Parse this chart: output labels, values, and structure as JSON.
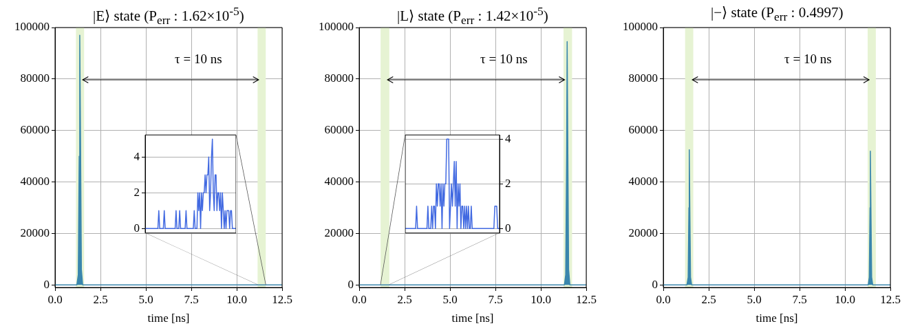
{
  "chart_data": [
    {
      "type": "area",
      "title": "|E⟩ state (P$_{err}$ : 1.62×10$^{-5}$)",
      "xlabel": "time [ns]",
      "color": "#3a86ad",
      "x": [
        0,
        1.2,
        1.28,
        1.33,
        1.36,
        1.4,
        1.45,
        1.52,
        12.5
      ],
      "values": [
        0,
        0,
        4000,
        50000,
        97000,
        60000,
        6000,
        0,
        0
      ],
      "xlim": [
        0,
        12.5
      ],
      "ylim": [
        -1000,
        100000
      ],
      "xticks": [
        {
          "value": 0,
          "label": "0.0"
        },
        {
          "value": 2.5,
          "label": "2.5"
        },
        {
          "value": 5,
          "label": "5.0"
        },
        {
          "value": 7.5,
          "label": "7.5"
        },
        {
          "value": 10,
          "label": "10.0"
        },
        {
          "value": 12.5,
          "label": "12.5"
        }
      ],
      "yticks": [
        0,
        20000,
        40000,
        60000,
        80000,
        100000
      ],
      "grid": true,
      "bands": [
        {
          "axis": "x",
          "from": 1.15,
          "to": 1.6,
          "color": "#e6f3d3"
        },
        {
          "axis": "x",
          "from": 11.15,
          "to": 11.6,
          "color": "#e6f3d3"
        }
      ],
      "annotations": [
        "τ = 10 ns"
      ]
    },
    {
      "type": "line",
      "color": "#4169e1",
      "tick_labels": "y",
      "grid": "y",
      "ylim": [
        -0.25,
        5.23
      ],
      "yticks": [
        0,
        2,
        4
      ],
      "categories": [
        null,
        null,
        null,
        null,
        null,
        null,
        null,
        null,
        null,
        null,
        null,
        null,
        null,
        null,
        null,
        null,
        null,
        null,
        null,
        null,
        null,
        null,
        null,
        null,
        null,
        null,
        null,
        null,
        null,
        null,
        null,
        null,
        null,
        null,
        null,
        null,
        null,
        null,
        null,
        null,
        null,
        null,
        null,
        null,
        null,
        null,
        null,
        null,
        null,
        null,
        null,
        null,
        null,
        null,
        null,
        null,
        null,
        null,
        null,
        null,
        null,
        null,
        null,
        null,
        null,
        null,
        null,
        null,
        null,
        null,
        null,
        null,
        null,
        null,
        null,
        null,
        null,
        null,
        null,
        null,
        null,
        null,
        null,
        null,
        null,
        null,
        null,
        null,
        null,
        null,
        null,
        null,
        null,
        null,
        null,
        null,
        null,
        null,
        null,
        null,
        null
      ],
      "values": [
        0,
        0,
        0,
        0,
        0,
        0,
        0,
        0,
        0,
        0,
        0,
        0,
        0,
        0,
        0,
        1,
        0,
        0,
        0,
        0,
        0,
        1,
        0,
        0,
        0,
        0,
        0,
        0,
        0,
        0,
        0,
        0,
        0,
        0,
        1,
        0,
        0,
        0,
        1,
        0,
        0,
        0,
        0,
        0,
        0,
        1,
        0,
        0,
        0,
        0,
        0,
        0,
        0,
        0,
        1,
        0,
        0,
        0,
        2,
        1,
        2,
        0,
        2,
        1,
        2,
        2,
        3,
        2,
        3,
        3,
        4,
        1,
        2,
        4,
        5,
        2,
        1,
        3,
        3,
        1,
        2,
        2,
        1,
        2,
        0,
        2,
        1,
        0,
        1,
        0,
        1,
        1,
        1,
        0,
        1,
        1,
        0,
        0,
        0,
        0,
        0
      ]
    },
    {
      "type": "area",
      "title": "|L⟩ state (P$_{err}$ : 1.42×10$^{-5}$)",
      "xlabel": "time [ns]",
      "color": "#3a86ad",
      "x": [
        0,
        11.3,
        11.37,
        11.42,
        11.45,
        11.48,
        11.53,
        11.6,
        12.5
      ],
      "values": [
        0,
        0,
        4000,
        50000,
        94500,
        60000,
        6000,
        0,
        0
      ],
      "xlim": [
        0,
        12.5
      ],
      "ylim": [
        -1000,
        100000
      ],
      "xticks": [
        {
          "value": 0,
          "label": "0.0"
        },
        {
          "value": 2.5,
          "label": "2.5"
        },
        {
          "value": 5,
          "label": "5.0"
        },
        {
          "value": 7.5,
          "label": "7.5"
        },
        {
          "value": 10,
          "label": "10.0"
        },
        {
          "value": 12.5,
          "label": "12.5"
        }
      ],
      "yticks": [
        0,
        20000,
        40000,
        60000,
        80000,
        100000
      ],
      "grid": true,
      "bands": [
        {
          "axis": "x",
          "from": 1.18,
          "to": 1.66,
          "color": "#e6f3d3"
        },
        {
          "axis": "x",
          "from": 11.25,
          "to": 11.72,
          "color": "#e6f3d3"
        }
      ],
      "annotations": [
        "τ = 10 ns"
      ]
    },
    {
      "type": "line",
      "color": "#4169e1",
      "tick_labels": "y",
      "grid": "y",
      "ylim": [
        -0.2,
        4.19
      ],
      "yticks": [
        0,
        2,
        4
      ],
      "categories": [
        null,
        null,
        null,
        null,
        null,
        null,
        null,
        null,
        null,
        null,
        null,
        null,
        null,
        null,
        null,
        null,
        null,
        null,
        null,
        null,
        null,
        null,
        null,
        null,
        null,
        null,
        null,
        null,
        null,
        null,
        null,
        null,
        null,
        null,
        null,
        null,
        null,
        null,
        null,
        null,
        null,
        null,
        null,
        null,
        null,
        null,
        null,
        null,
        null,
        null,
        null,
        null,
        null,
        null,
        null,
        null,
        null,
        null,
        null,
        null,
        null,
        null,
        null,
        null,
        null,
        null,
        null,
        null,
        null,
        null,
        null,
        null,
        null,
        null,
        null,
        null,
        null,
        null,
        null,
        null,
        null,
        null,
        null,
        null,
        null,
        null,
        null,
        null,
        null,
        null,
        null,
        null,
        null,
        null,
        null,
        null,
        null,
        null,
        null,
        null,
        null
      ],
      "values": [
        0,
        0,
        0,
        0,
        0,
        0,
        0,
        0,
        0,
        0,
        0,
        0,
        1,
        0,
        0,
        0,
        0,
        0,
        0,
        0,
        0,
        0,
        0,
        0,
        1,
        0,
        0,
        0,
        1,
        0,
        1,
        1,
        0,
        2,
        1,
        2,
        2,
        1,
        2,
        0,
        2,
        1,
        2,
        2,
        4,
        4,
        4,
        0,
        1,
        2,
        1,
        2,
        3,
        1,
        3,
        0,
        2,
        1,
        2,
        0,
        1,
        1,
        0,
        1,
        0,
        1,
        0,
        1,
        0,
        0,
        1,
        0,
        0,
        0,
        0,
        0,
        0,
        0,
        0,
        0,
        0,
        0,
        0,
        0,
        0,
        0,
        0,
        0,
        0,
        0,
        0,
        0,
        0,
        0,
        0,
        1,
        1,
        1,
        0,
        0,
        0
      ]
    },
    {
      "type": "area",
      "title": "|−⟩ state (P$_{err}$ : 0.4997)",
      "xlabel": "time [ns]",
      "color": "#3a86ad",
      "x": [
        0,
        1.3,
        1.37,
        1.41,
        1.43,
        1.46,
        1.5,
        1.56,
        11.28,
        11.34,
        11.38,
        11.4,
        11.43,
        11.47,
        11.53,
        12.5
      ],
      "values": [
        0,
        0,
        3000,
        30000,
        52500,
        30000,
        3000,
        0,
        0,
        3000,
        30000,
        52000,
        30000,
        3000,
        0,
        0
      ],
      "xlim": [
        0,
        12.5
      ],
      "ylim": [
        -1000,
        100000
      ],
      "xticks": [
        {
          "value": 0,
          "label": "0.0"
        },
        {
          "value": 2.5,
          "label": "2.5"
        },
        {
          "value": 5,
          "label": "5.0"
        },
        {
          "value": 7.5,
          "label": "7.5"
        },
        {
          "value": 10,
          "label": "10.0"
        },
        {
          "value": 12.5,
          "label": "12.5"
        }
      ],
      "yticks": [
        0,
        20000,
        40000,
        60000,
        80000,
        100000
      ],
      "grid": true,
      "bands": [
        {
          "axis": "x",
          "from": 1.2,
          "to": 1.65,
          "color": "#e6f3d3"
        },
        {
          "axis": "x",
          "from": 11.25,
          "to": 11.7,
          "color": "#e6f3d3"
        }
      ],
      "annotations": [
        "τ = 10 ns"
      ]
    }
  ]
}
